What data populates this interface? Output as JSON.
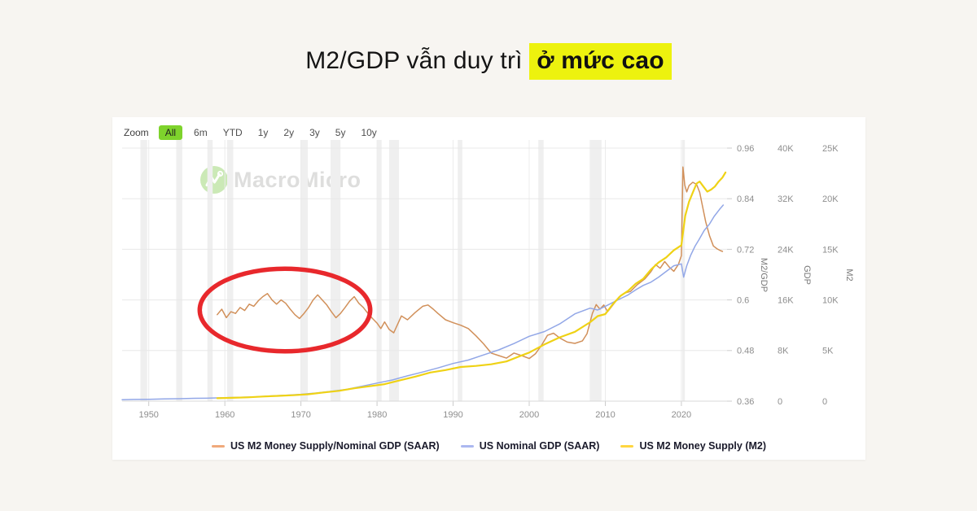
{
  "page": {
    "background": "#F7F5F1",
    "title": {
      "prefix": "M2/GDP vẫn duy trì",
      "highlight": "ở mức cao",
      "highlight_color": "#EDF20E"
    }
  },
  "toolbar": {
    "zoom_label": "Zoom",
    "ranges": [
      "All",
      "6m",
      "YTD",
      "1y",
      "2y",
      "3y",
      "5y",
      "10y"
    ],
    "active": "All",
    "active_color": "#7ED32C"
  },
  "watermark": {
    "text": "MacroMicro",
    "icon_color": "#B7E09A"
  },
  "chart_data": {
    "type": "line",
    "x_range": [
      1946.5,
      2026
    ],
    "x_ticks": [
      1950,
      1960,
      1970,
      1980,
      1990,
      2000,
      2010,
      2020
    ],
    "grid": true,
    "legend_position": "bottom",
    "axes": [
      {
        "name": "M2/GDP",
        "side": "right",
        "ticks": [
          "0.96",
          "0.84",
          "0.72",
          "0.6",
          "0.48",
          "0.36"
        ],
        "range": [
          0.36,
          0.96
        ]
      },
      {
        "name": "GDP",
        "side": "right",
        "ticks": [
          "40K",
          "32K",
          "24K",
          "16K",
          "8K",
          "0"
        ],
        "range": [
          0,
          40
        ]
      },
      {
        "name": "M2",
        "side": "right",
        "ticks": [
          "25K",
          "20K",
          "15K",
          "10K",
          "5K",
          "0"
        ],
        "range": [
          0,
          25
        ]
      }
    ],
    "recessions": [
      [
        1948.9,
        1949.8
      ],
      [
        1953.6,
        1954.4
      ],
      [
        1957.7,
        1958.4
      ],
      [
        1960.3,
        1961.1
      ],
      [
        1969.95,
        1970.9
      ],
      [
        1973.9,
        1975.2
      ],
      [
        1980.05,
        1980.6
      ],
      [
        1981.6,
        1982.9
      ],
      [
        1990.6,
        1991.2
      ],
      [
        2001.2,
        2001.9
      ],
      [
        2007.95,
        2009.5
      ],
      [
        2020.1,
        2020.45
      ]
    ],
    "annotation_ellipse": {
      "x_year": 1967.9,
      "y_value": 0.576,
      "rx_years": 11.2,
      "ry_value": 0.098,
      "color": "#E8282C",
      "stroke_width": 5.5
    },
    "series": [
      {
        "id": "us-m2-gdp-ratio",
        "name": "US M2 Money Supply/Nominal GDP (SAAR)",
        "color": "#D1905A",
        "legend_color": "#F0A97B",
        "axis": 0,
        "width": 1.5,
        "points": [
          [
            1959,
            0.565
          ],
          [
            1959.6,
            0.578
          ],
          [
            1960.2,
            0.558
          ],
          [
            1960.8,
            0.572
          ],
          [
            1961.4,
            0.568
          ],
          [
            1962,
            0.582
          ],
          [
            1962.6,
            0.575
          ],
          [
            1963.2,
            0.59
          ],
          [
            1963.8,
            0.585
          ],
          [
            1964.4,
            0.598
          ],
          [
            1965,
            0.608
          ],
          [
            1965.6,
            0.615
          ],
          [
            1966.2,
            0.6
          ],
          [
            1966.8,
            0.59
          ],
          [
            1967.4,
            0.6
          ],
          [
            1968,
            0.592
          ],
          [
            1968.6,
            0.578
          ],
          [
            1969.2,
            0.565
          ],
          [
            1969.8,
            0.556
          ],
          [
            1970.4,
            0.568
          ],
          [
            1971,
            0.582
          ],
          [
            1971.6,
            0.6
          ],
          [
            1972.2,
            0.612
          ],
          [
            1972.8,
            0.6
          ],
          [
            1973.4,
            0.588
          ],
          [
            1974,
            0.572
          ],
          [
            1974.6,
            0.558
          ],
          [
            1975.2,
            0.568
          ],
          [
            1975.8,
            0.582
          ],
          [
            1976.4,
            0.597
          ],
          [
            1977,
            0.608
          ],
          [
            1977.6,
            0.592
          ],
          [
            1978.2,
            0.582
          ],
          [
            1978.8,
            0.568
          ],
          [
            1979.4,
            0.556
          ],
          [
            1980,
            0.545
          ],
          [
            1980.5,
            0.532
          ],
          [
            1981,
            0.548
          ],
          [
            1981.6,
            0.53
          ],
          [
            1982.2,
            0.522
          ],
          [
            1982.7,
            0.542
          ],
          [
            1983.2,
            0.562
          ],
          [
            1984,
            0.553
          ],
          [
            1985,
            0.57
          ],
          [
            1986,
            0.585
          ],
          [
            1986.7,
            0.588
          ],
          [
            1987.4,
            0.578
          ],
          [
            1988,
            0.568
          ],
          [
            1989,
            0.553
          ],
          [
            1990,
            0.546
          ],
          [
            1991,
            0.54
          ],
          [
            1992,
            0.532
          ],
          [
            1993,
            0.515
          ],
          [
            1994,
            0.496
          ],
          [
            1995,
            0.474
          ],
          [
            1996,
            0.468
          ],
          [
            1997,
            0.462
          ],
          [
            1998,
            0.474
          ],
          [
            1999,
            0.468
          ],
          [
            2000,
            0.461
          ],
          [
            2000.8,
            0.472
          ],
          [
            2001.6,
            0.492
          ],
          [
            2002.4,
            0.516
          ],
          [
            2003.2,
            0.521
          ],
          [
            2004,
            0.51
          ],
          [
            2005,
            0.5
          ],
          [
            2006,
            0.497
          ],
          [
            2007,
            0.503
          ],
          [
            2007.6,
            0.52
          ],
          [
            2008.3,
            0.568
          ],
          [
            2008.8,
            0.589
          ],
          [
            2009.3,
            0.578
          ],
          [
            2009.8,
            0.588
          ],
          [
            2010.3,
            0.572
          ],
          [
            2011,
            0.588
          ],
          [
            2011.8,
            0.607
          ],
          [
            2012.5,
            0.616
          ],
          [
            2013.3,
            0.62
          ],
          [
            2014.2,
            0.636
          ],
          [
            2015.2,
            0.65
          ],
          [
            2016,
            0.667
          ],
          [
            2016.6,
            0.684
          ],
          [
            2017.2,
            0.675
          ],
          [
            2017.8,
            0.691
          ],
          [
            2018.4,
            0.678
          ],
          [
            2019,
            0.668
          ],
          [
            2019.6,
            0.684
          ],
          [
            2020,
            0.705
          ],
          [
            2020.2,
            0.915
          ],
          [
            2020.45,
            0.872
          ],
          [
            2020.7,
            0.856
          ],
          [
            2021,
            0.871
          ],
          [
            2021.5,
            0.879
          ],
          [
            2022,
            0.874
          ],
          [
            2022.4,
            0.855
          ],
          [
            2022.8,
            0.82
          ],
          [
            2023.2,
            0.785
          ],
          [
            2023.7,
            0.752
          ],
          [
            2024.2,
            0.728
          ],
          [
            2024.7,
            0.721
          ],
          [
            2025,
            0.718
          ],
          [
            2025.4,
            0.715
          ]
        ]
      },
      {
        "id": "us-nominal-gdp",
        "name": "US Nominal GDP (SAAR)",
        "color": "#92A7E7",
        "legend_color": "#ACB8F0",
        "axis": 1,
        "width": 1.5,
        "points": [
          [
            1946.5,
            0.23
          ],
          [
            1948,
            0.27
          ],
          [
            1950,
            0.3
          ],
          [
            1952,
            0.36
          ],
          [
            1954,
            0.39
          ],
          [
            1956,
            0.45
          ],
          [
            1958,
            0.48
          ],
          [
            1960,
            0.54
          ],
          [
            1962,
            0.6
          ],
          [
            1964,
            0.68
          ],
          [
            1966,
            0.82
          ],
          [
            1968,
            0.94
          ],
          [
            1970,
            1.08
          ],
          [
            1972,
            1.28
          ],
          [
            1974,
            1.55
          ],
          [
            1976,
            1.87
          ],
          [
            1978,
            2.35
          ],
          [
            1980,
            2.86
          ],
          [
            1982,
            3.34
          ],
          [
            1984,
            4.0
          ],
          [
            1986,
            4.6
          ],
          [
            1988,
            5.25
          ],
          [
            1990,
            5.96
          ],
          [
            1992,
            6.5
          ],
          [
            1994,
            7.3
          ],
          [
            1996,
            8.1
          ],
          [
            1998,
            9.1
          ],
          [
            2000,
            10.25
          ],
          [
            2002,
            11.0
          ],
          [
            2004,
            12.2
          ],
          [
            2006,
            13.8
          ],
          [
            2008,
            14.7
          ],
          [
            2009,
            14.4
          ],
          [
            2010,
            15.0
          ],
          [
            2011,
            15.6
          ],
          [
            2012,
            16.2
          ],
          [
            2013,
            16.8
          ],
          [
            2014,
            17.6
          ],
          [
            2015,
            18.3
          ],
          [
            2016,
            18.8
          ],
          [
            2017,
            19.6
          ],
          [
            2018,
            20.5
          ],
          [
            2019,
            21.4
          ],
          [
            2020,
            21.7
          ],
          [
            2020.3,
            19.6
          ],
          [
            2020.7,
            21.4
          ],
          [
            2021.2,
            23.0
          ],
          [
            2021.8,
            24.5
          ],
          [
            2022.3,
            25.5
          ],
          [
            2023,
            27.0
          ],
          [
            2023.7,
            28.0
          ],
          [
            2024.3,
            29.2
          ],
          [
            2025,
            30.3
          ],
          [
            2025.5,
            31.0
          ]
        ]
      },
      {
        "id": "us-m2-money-supply",
        "name": "US M2 Money Supply (M2)",
        "color": "#EFD215",
        "legend_color": "#FFD640",
        "axis": 2,
        "width": 2.2,
        "points": [
          [
            1959,
            0.29
          ],
          [
            1961,
            0.33
          ],
          [
            1963,
            0.38
          ],
          [
            1965,
            0.46
          ],
          [
            1967,
            0.52
          ],
          [
            1969,
            0.59
          ],
          [
            1971,
            0.68
          ],
          [
            1973,
            0.86
          ],
          [
            1975,
            1.02
          ],
          [
            1977,
            1.27
          ],
          [
            1979,
            1.47
          ],
          [
            1981,
            1.68
          ],
          [
            1983,
            2.06
          ],
          [
            1985,
            2.42
          ],
          [
            1987,
            2.83
          ],
          [
            1989,
            3.07
          ],
          [
            1991,
            3.38
          ],
          [
            1993,
            3.48
          ],
          [
            1995,
            3.64
          ],
          [
            1997,
            3.92
          ],
          [
            1999,
            4.52
          ],
          [
            2000,
            4.8
          ],
          [
            2002,
            5.6
          ],
          [
            2004,
            6.3
          ],
          [
            2006,
            6.85
          ],
          [
            2008,
            7.8
          ],
          [
            2009,
            8.4
          ],
          [
            2010,
            8.6
          ],
          [
            2011,
            9.6
          ],
          [
            2012,
            10.4
          ],
          [
            2013,
            10.9
          ],
          [
            2014,
            11.6
          ],
          [
            2015,
            12.1
          ],
          [
            2016,
            13.0
          ],
          [
            2017,
            13.7
          ],
          [
            2018,
            14.2
          ],
          [
            2019,
            14.9
          ],
          [
            2020,
            15.4
          ],
          [
            2020.5,
            18.3
          ],
          [
            2021,
            19.7
          ],
          [
            2021.5,
            20.6
          ],
          [
            2022,
            21.5
          ],
          [
            2022.4,
            21.7
          ],
          [
            2022.9,
            21.2
          ],
          [
            2023.4,
            20.7
          ],
          [
            2023.9,
            20.9
          ],
          [
            2024.4,
            21.2
          ],
          [
            2024.9,
            21.7
          ],
          [
            2025.4,
            22.1
          ],
          [
            2025.8,
            22.6
          ]
        ]
      }
    ]
  }
}
